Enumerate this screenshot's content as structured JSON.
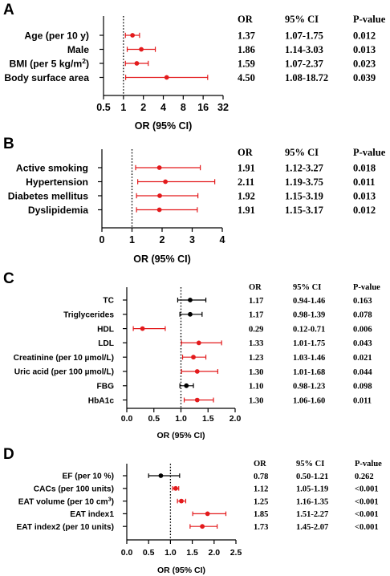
{
  "colors": {
    "significant": "#e31a1c",
    "nonsignificant": "#000000"
  },
  "chart_data": [
    {
      "type": "forest",
      "panel_label": "A",
      "xlabel": "OR (95% CI)",
      "scale": "log2",
      "xlim": [
        0.5,
        32
      ],
      "ticks": [
        0.5,
        1,
        2,
        4,
        8,
        16,
        32
      ],
      "tick_labels": [
        "0.5",
        "1",
        "2",
        "4",
        "8",
        "16",
        "32"
      ],
      "reference_line": 1,
      "columns": [
        "OR",
        "95% CI",
        "P-value"
      ],
      "rows": [
        {
          "label": "Age (per 10 y)",
          "or": 1.37,
          "lo": 1.07,
          "hi": 1.75,
          "or_text": "1.37",
          "ci_text": "1.07-1.75",
          "p_text": "0.012",
          "significant": true
        },
        {
          "label": "Male",
          "or": 1.86,
          "lo": 1.14,
          "hi": 3.03,
          "or_text": "1.86",
          "ci_text": "1.14-3.03",
          "p_text": "0.013",
          "significant": true
        },
        {
          "label": "BMI (per 5 kg/m",
          "label_sup": "2",
          "label_after": ")",
          "or": 1.59,
          "lo": 1.07,
          "hi": 2.37,
          "or_text": "1.59",
          "ci_text": "1.07-2.37",
          "p_text": "0.023",
          "significant": true
        },
        {
          "label": "Body surface area",
          "or": 4.5,
          "lo": 1.08,
          "hi": 18.72,
          "or_text": "4.50",
          "ci_text": "1.08-18.72",
          "p_text": "0.039",
          "significant": true
        }
      ]
    },
    {
      "type": "forest",
      "panel_label": "B",
      "xlabel": "OR (95% CI)",
      "scale": "linear",
      "xlim": [
        0,
        4
      ],
      "ticks": [
        0,
        1,
        2,
        3,
        4
      ],
      "tick_labels": [
        "0",
        "1",
        "2",
        "3",
        "4"
      ],
      "reference_line": 1,
      "columns": [
        "OR",
        "95% CI",
        "P-value"
      ],
      "rows": [
        {
          "label": "Active smoking",
          "or": 1.91,
          "lo": 1.12,
          "hi": 3.27,
          "or_text": "1.91",
          "ci_text": "1.12-3.27",
          "p_text": "0.018",
          "significant": true
        },
        {
          "label": "Hypertension",
          "or": 2.11,
          "lo": 1.19,
          "hi": 3.75,
          "or_text": "2.11",
          "ci_text": "1.19-3.75",
          "p_text": "0.011",
          "significant": true
        },
        {
          "label": "Diabetes mellitus",
          "or": 1.92,
          "lo": 1.15,
          "hi": 3.19,
          "or_text": "1.92",
          "ci_text": "1.15-3.19",
          "p_text": "0.013",
          "significant": true
        },
        {
          "label": "Dyslipidemia",
          "or": 1.91,
          "lo": 1.15,
          "hi": 3.17,
          "or_text": "1.91",
          "ci_text": "1.15-3.17",
          "p_text": "0.012",
          "significant": true
        }
      ]
    },
    {
      "type": "forest",
      "panel_label": "C",
      "xlabel": "OR (95% CI)",
      "scale": "linear",
      "xlim": [
        0,
        2
      ],
      "ticks": [
        0,
        0.5,
        1,
        1.5,
        2
      ],
      "tick_labels": [
        "0.0",
        "0.5",
        "1.0",
        "1.5",
        "2.0"
      ],
      "reference_line": 1,
      "columns": [
        "OR",
        "95% CI",
        "P-value"
      ],
      "rows": [
        {
          "label": "TC",
          "or": 1.17,
          "lo": 0.94,
          "hi": 1.46,
          "or_text": "1.17",
          "ci_text": "0.94-1.46",
          "p_text": "0.163",
          "significant": false
        },
        {
          "label": "Triglycerides",
          "or": 1.17,
          "lo": 0.98,
          "hi": 1.39,
          "or_text": "1.17",
          "ci_text": "0.98-1.39",
          "p_text": "0.078",
          "significant": false
        },
        {
          "label": "HDL",
          "or": 0.29,
          "lo": 0.12,
          "hi": 0.71,
          "or_text": "0.29",
          "ci_text": "0.12-0.71",
          "p_text": "0.006",
          "significant": true
        },
        {
          "label": "LDL",
          "or": 1.33,
          "lo": 1.01,
          "hi": 1.75,
          "or_text": "1.33",
          "ci_text": "1.01-1.75",
          "p_text": "0.043",
          "significant": true
        },
        {
          "label": "Creatinine (per 10 µmol/L)",
          "or": 1.23,
          "lo": 1.03,
          "hi": 1.46,
          "or_text": "1.23",
          "ci_text": "1.03-1.46",
          "p_text": "0.021",
          "significant": true
        },
        {
          "label": "Uric acid (per 100 µmol/L)",
          "or": 1.3,
          "lo": 1.01,
          "hi": 1.68,
          "or_text": "1.30",
          "ci_text": "1.01-1.68",
          "p_text": "0.044",
          "significant": true
        },
        {
          "label": "FBG",
          "or": 1.1,
          "lo": 0.98,
          "hi": 1.23,
          "or_text": "1.10",
          "ci_text": "0.98-1.23",
          "p_text": "0.098",
          "significant": false
        },
        {
          "label": "HbA1c",
          "or": 1.3,
          "lo": 1.06,
          "hi": 1.6,
          "or_text": "1.30",
          "ci_text": "1.06-1.60",
          "p_text": "0.011",
          "significant": true
        }
      ]
    },
    {
      "type": "forest",
      "panel_label": "D",
      "xlabel": "OR (95% CI)",
      "scale": "linear",
      "xlim": [
        0,
        2.5
      ],
      "ticks": [
        0,
        0.5,
        1,
        1.5,
        2,
        2.5
      ],
      "tick_labels": [
        "0.0",
        "0.5",
        "1.0",
        "1.5",
        "2.0",
        "2.5"
      ],
      "reference_line": 1,
      "columns": [
        "OR",
        "95% CI",
        "P-value"
      ],
      "rows": [
        {
          "label": "EF (per 10 %)",
          "or": 0.78,
          "lo": 0.5,
          "hi": 1.21,
          "or_text": "0.78",
          "ci_text": "0.50-1.21",
          "p_text": "0.262",
          "significant": false
        },
        {
          "label": "CACs (per 100 units)",
          "or": 1.12,
          "lo": 1.05,
          "hi": 1.19,
          "or_text": "1.12",
          "ci_text": "1.05-1.19",
          "p_text": "<0.001",
          "significant": true
        },
        {
          "label": "EAT volume (per 10 cm",
          "label_sup": "3",
          "label_after": ")",
          "or": 1.25,
          "lo": 1.16,
          "hi": 1.35,
          "or_text": "1.25",
          "ci_text": "1.16-1.35",
          "p_text": "<0.001",
          "significant": true
        },
        {
          "label": "EAT index1",
          "or": 1.85,
          "lo": 1.51,
          "hi": 2.27,
          "or_text": "1.85",
          "ci_text": "1.51-2.27",
          "p_text": "<0.001",
          "significant": true
        },
        {
          "label": "EAT index2 (per 10 units)",
          "or": 1.73,
          "lo": 1.45,
          "hi": 2.07,
          "or_text": "1.73",
          "ci_text": "1.45-2.07",
          "p_text": "<0.001",
          "significant": true
        }
      ]
    }
  ]
}
